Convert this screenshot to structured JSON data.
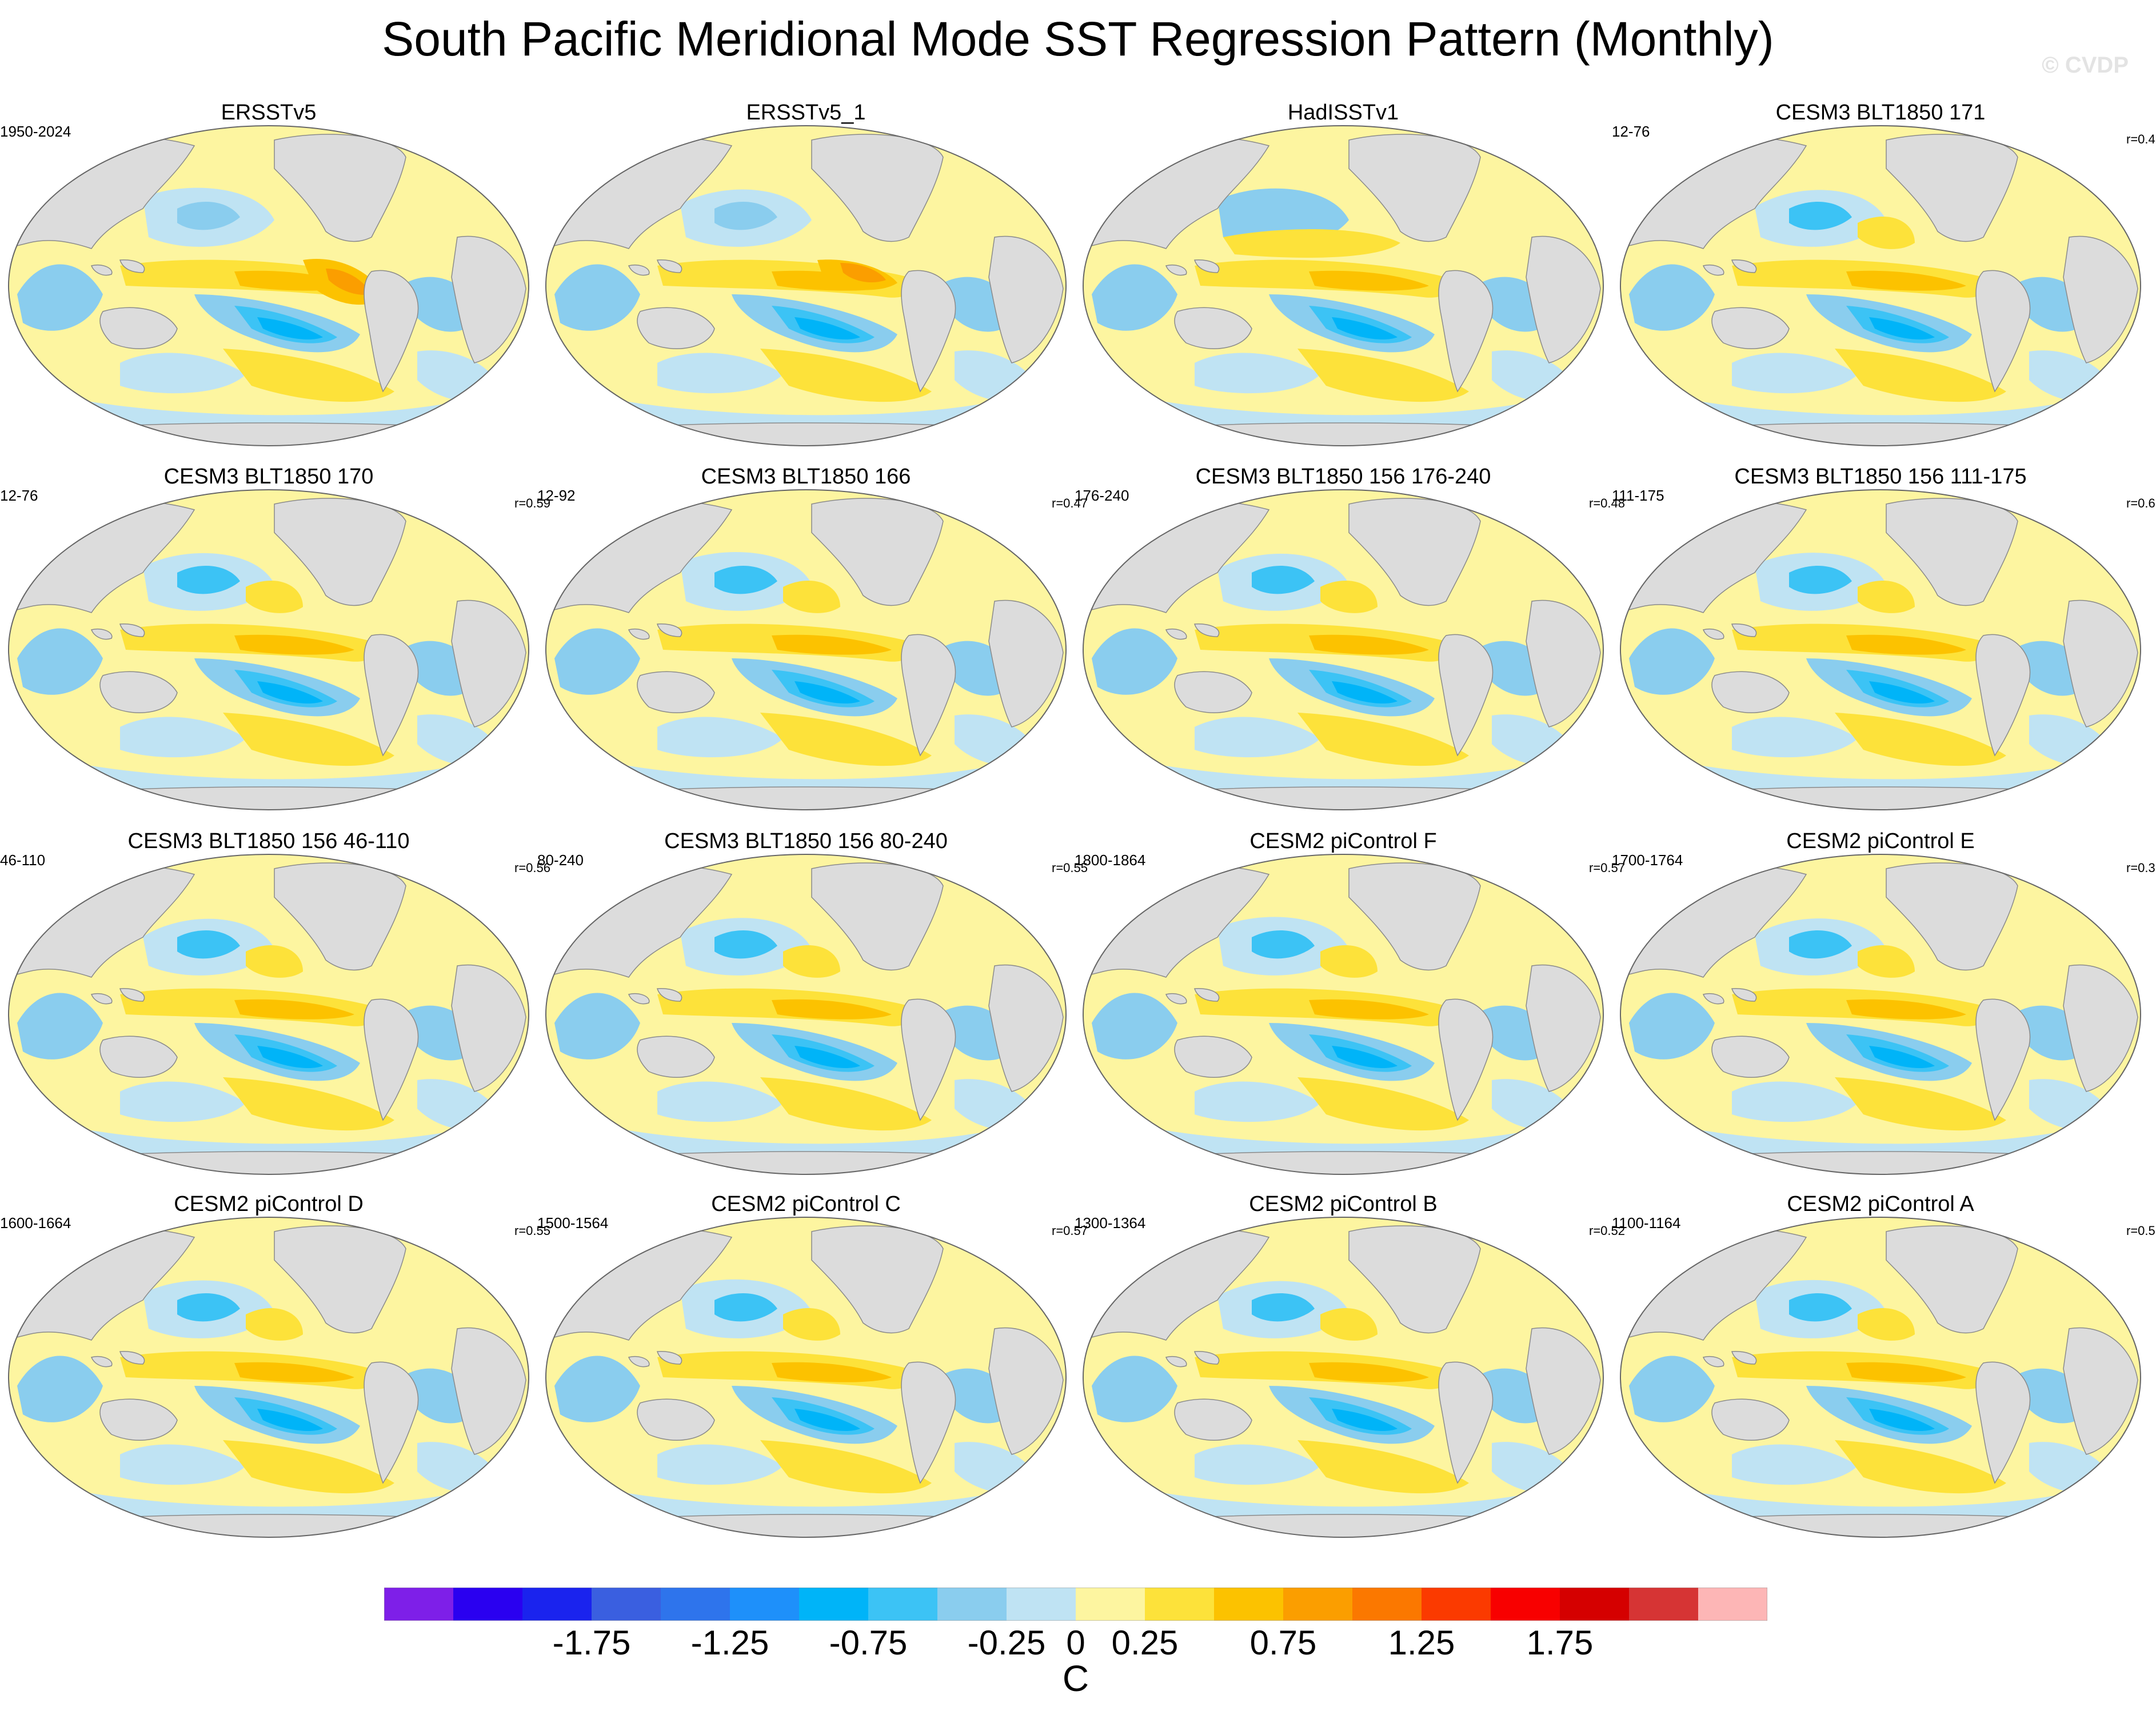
{
  "title": "South Pacific Meridional Mode SST Regression Pattern (Monthly)",
  "watermark": "© CVDP",
  "chart_data": {
    "type": "heatmap",
    "projection": "robinson-like global map, Pacific-centered",
    "variable": "SST regression",
    "units": "C",
    "panels": [
      {
        "title": "ERSSTv5",
        "period": "1950-2024",
        "r": "",
        "pattern": "obs1"
      },
      {
        "title": "ERSSTv5_1",
        "period": "",
        "r": "",
        "pattern": "obs2"
      },
      {
        "title": "HadISSTv1",
        "period": "",
        "r": "",
        "pattern": "obs3"
      },
      {
        "title": "CESM3 BLT1850 171",
        "period": "12-76",
        "r": "r=0.4",
        "pattern": "model"
      },
      {
        "title": "CESM3 BLT1850 170",
        "period": "12-76",
        "r": "r=0.59",
        "pattern": "model"
      },
      {
        "title": "CESM3 BLT1850 166",
        "period": "12-92",
        "r": "r=0.47",
        "pattern": "model"
      },
      {
        "title": "CESM3 BLT1850 156 176-240",
        "period": "176-240",
        "r": "r=0.48",
        "pattern": "model"
      },
      {
        "title": "CESM3 BLT1850 156 111-175",
        "period": "111-175",
        "r": "r=0.6",
        "pattern": "model"
      },
      {
        "title": "CESM3 BLT1850 156 46-110",
        "period": "46-110",
        "r": "r=0.56",
        "pattern": "model"
      },
      {
        "title": "CESM3 BLT1850 156 80-240",
        "period": "80-240",
        "r": "r=0.55",
        "pattern": "model"
      },
      {
        "title": "CESM2 piControl F",
        "period": "1800-1864",
        "r": "r=0.57",
        "pattern": "model"
      },
      {
        "title": "CESM2 piControl E",
        "period": "1700-1764",
        "r": "r=0.3",
        "pattern": "model"
      },
      {
        "title": "CESM2 piControl D",
        "period": "1600-1664",
        "r": "r=0.55",
        "pattern": "model"
      },
      {
        "title": "CESM2 piControl C",
        "period": "1500-1564",
        "r": "r=0.57",
        "pattern": "model"
      },
      {
        "title": "CESM2 piControl B",
        "period": "1300-1364",
        "r": "r=0.52",
        "pattern": "model"
      },
      {
        "title": "CESM2 piControl A",
        "period": "1100-1164",
        "r": "r=0.5",
        "pattern": "model"
      }
    ],
    "colorbar": {
      "label": "C",
      "levels": [
        -2.25,
        -2.0,
        -1.75,
        -1.5,
        -1.25,
        -1.0,
        -0.75,
        -0.5,
        -0.25,
        0,
        0.25,
        0.5,
        0.75,
        1.0,
        1.25,
        1.5,
        1.75,
        2.0,
        2.25
      ],
      "tick_labels": [
        "-1.75",
        "-1.25",
        "-0.75",
        "-0.25",
        "0",
        "0.25",
        "0.75",
        "1.25",
        "1.75"
      ],
      "tick_values": [
        -1.75,
        -1.25,
        -0.75,
        -0.25,
        0,
        0.25,
        0.75,
        1.25,
        1.75
      ],
      "colors": [
        "#7e1fe8",
        "#2a00f0",
        "#1a23ee",
        "#3a5fe0",
        "#2e74ec",
        "#1e90fa",
        "#00b4f8",
        "#3cc3f5",
        "#8acdee",
        "#bfe3f3",
        "#fdf5a0",
        "#fde23a",
        "#fcc200",
        "#fb9e00",
        "#fb7800",
        "#fb3a00",
        "#f80000",
        "#d50000",
        "#d63434",
        "#fdb6b6"
      ]
    }
  }
}
